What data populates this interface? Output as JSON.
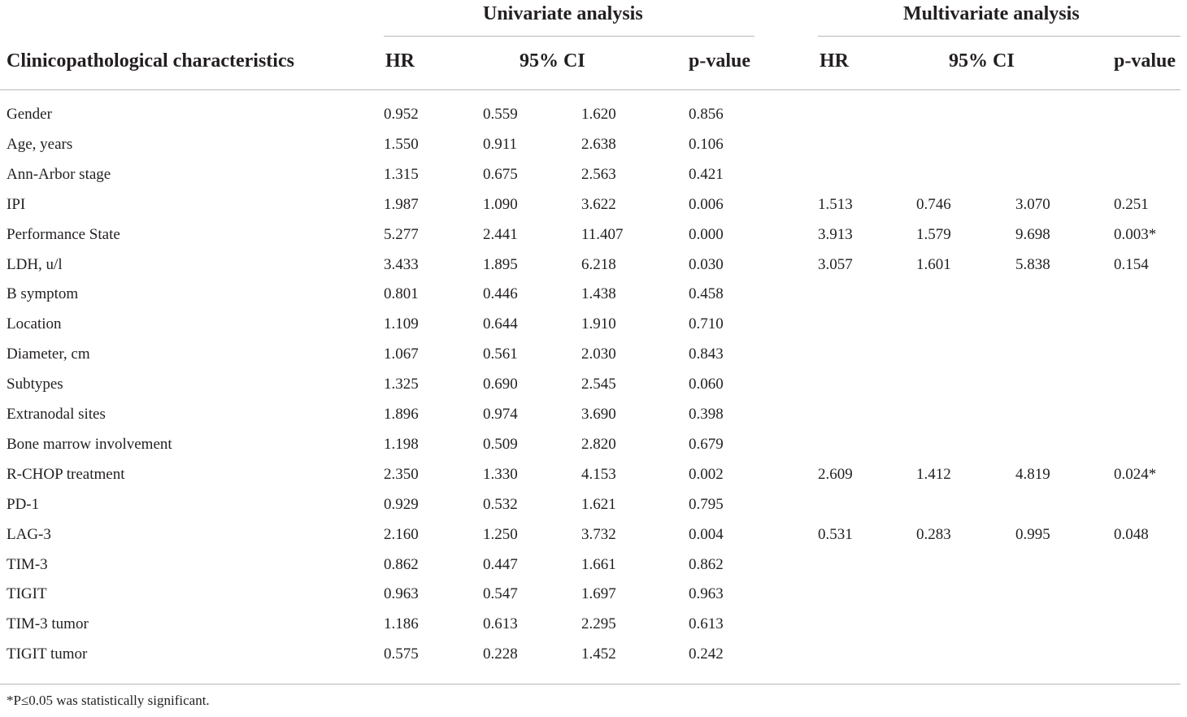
{
  "table": {
    "group_headers": {
      "univariate": "Univariate analysis",
      "multivariate": "Multivariate analysis"
    },
    "columns": {
      "characteristic": "Clinicopathological characteristics",
      "uni_hr": "HR",
      "uni_ci": "95% CI",
      "uni_p": "p-value",
      "multi_hr": "HR",
      "multi_ci": "95% CI",
      "multi_p": "p-value"
    },
    "rows": [
      {
        "name": "Gender",
        "u_hr": "0.952",
        "u_lo": "0.559",
        "u_hi": "1.620",
        "u_p": "0.856",
        "m_hr": "",
        "m_lo": "",
        "m_hi": "",
        "m_p": ""
      },
      {
        "name": "Age, years",
        "u_hr": "1.550",
        "u_lo": "0.911",
        "u_hi": "2.638",
        "u_p": "0.106",
        "m_hr": "",
        "m_lo": "",
        "m_hi": "",
        "m_p": ""
      },
      {
        "name": "Ann-Arbor stage",
        "u_hr": "1.315",
        "u_lo": "0.675",
        "u_hi": "2.563",
        "u_p": "0.421",
        "m_hr": "",
        "m_lo": "",
        "m_hi": "",
        "m_p": ""
      },
      {
        "name": "IPI",
        "u_hr": "1.987",
        "u_lo": "1.090",
        "u_hi": "3.622",
        "u_p": "0.006",
        "m_hr": "1.513",
        "m_lo": "0.746",
        "m_hi": "3.070",
        "m_p": "0.251"
      },
      {
        "name": "Performance State",
        "u_hr": "5.277",
        "u_lo": "2.441",
        "u_hi": "11.407",
        "u_p": "0.000",
        "m_hr": "3.913",
        "m_lo": "1.579",
        "m_hi": "9.698",
        "m_p": "0.003*"
      },
      {
        "name": "LDH, u/l",
        "u_hr": "3.433",
        "u_lo": "1.895",
        "u_hi": "6.218",
        "u_p": "0.030",
        "m_hr": "3.057",
        "m_lo": "1.601",
        "m_hi": "5.838",
        "m_p": "0.154"
      },
      {
        "name": "B symptom",
        "u_hr": "0.801",
        "u_lo": "0.446",
        "u_hi": "1.438",
        "u_p": "0.458",
        "m_hr": "",
        "m_lo": "",
        "m_hi": "",
        "m_p": ""
      },
      {
        "name": "Location",
        "u_hr": "1.109",
        "u_lo": "0.644",
        "u_hi": "1.910",
        "u_p": "0.710",
        "m_hr": "",
        "m_lo": "",
        "m_hi": "",
        "m_p": ""
      },
      {
        "name": "Diameter, cm",
        "u_hr": "1.067",
        "u_lo": "0.561",
        "u_hi": "2.030",
        "u_p": "0.843",
        "m_hr": "",
        "m_lo": "",
        "m_hi": "",
        "m_p": ""
      },
      {
        "name": "Subtypes",
        "u_hr": "1.325",
        "u_lo": "0.690",
        "u_hi": "2.545",
        "u_p": "0.060",
        "m_hr": "",
        "m_lo": "",
        "m_hi": "",
        "m_p": ""
      },
      {
        "name": "Extranodal sites",
        "u_hr": "1.896",
        "u_lo": "0.974",
        "u_hi": "3.690",
        "u_p": "0.398",
        "m_hr": "",
        "m_lo": "",
        "m_hi": "",
        "m_p": ""
      },
      {
        "name": "Bone marrow involvement",
        "u_hr": "1.198",
        "u_lo": "0.509",
        "u_hi": "2.820",
        "u_p": "0.679",
        "m_hr": "",
        "m_lo": "",
        "m_hi": "",
        "m_p": ""
      },
      {
        "name": "R-CHOP treatment",
        "u_hr": "2.350",
        "u_lo": "1.330",
        "u_hi": "4.153",
        "u_p": "0.002",
        "m_hr": "2.609",
        "m_lo": "1.412",
        "m_hi": "4.819",
        "m_p": "0.024*"
      },
      {
        "name": "PD-1",
        "u_hr": "0.929",
        "u_lo": "0.532",
        "u_hi": "1.621",
        "u_p": "0.795",
        "m_hr": "",
        "m_lo": "",
        "m_hi": "",
        "m_p": ""
      },
      {
        "name": "LAG-3",
        "u_hr": "2.160",
        "u_lo": "1.250",
        "u_hi": "3.732",
        "u_p": "0.004",
        "m_hr": "0.531",
        "m_lo": "0.283",
        "m_hi": "0.995",
        "m_p": "0.048"
      },
      {
        "name": "TIM-3",
        "u_hr": "0.862",
        "u_lo": "0.447",
        "u_hi": "1.661",
        "u_p": "0.862",
        "m_hr": "",
        "m_lo": "",
        "m_hi": "",
        "m_p": ""
      },
      {
        "name": "TIGIT",
        "u_hr": "0.963",
        "u_lo": "0.547",
        "u_hi": "1.697",
        "u_p": "0.963",
        "m_hr": "",
        "m_lo": "",
        "m_hi": "",
        "m_p": ""
      },
      {
        "name": "TIM-3 tumor",
        "u_hr": "1.186",
        "u_lo": "0.613",
        "u_hi": "2.295",
        "u_p": "0.613",
        "m_hr": "",
        "m_lo": "",
        "m_hi": "",
        "m_p": ""
      },
      {
        "name": "TIGIT tumor",
        "u_hr": "0.575",
        "u_lo": "0.228",
        "u_hi": "1.452",
        "u_p": "0.242",
        "m_hr": "",
        "m_lo": "",
        "m_hi": "",
        "m_p": ""
      }
    ],
    "footnote": "*P≤0.05 was statistically significant."
  }
}
